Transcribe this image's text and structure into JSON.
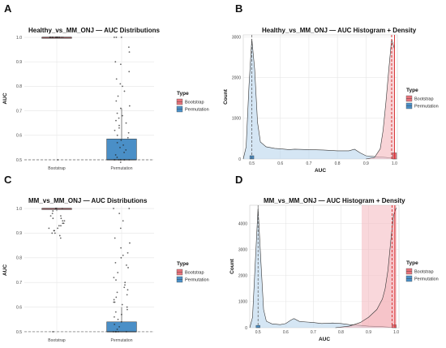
{
  "colors": {
    "bootstrap": "#e8737b",
    "permutation": "#4a8fc7",
    "bootstrap_fill": "#f4b7bd",
    "permutation_fill": "#b9d6ec",
    "grid": "#e6e6e6",
    "refline": "#666666"
  },
  "panels": [
    {
      "letter": "A",
      "title": "Healthy_vs_MM_ONJ — AUC Distributions",
      "ylabel": "AUC",
      "legend": {
        "title": "Type",
        "items": [
          "Bootstrap",
          "Permutation"
        ]
      }
    },
    {
      "letter": "B",
      "title": "Healthy_vs_MM_ONJ — AUC Histogram + Density",
      "xlabel": "AUC",
      "ylabel": "Count",
      "legend": {
        "title": "Type",
        "items": [
          "Bootstrap",
          "Permutation"
        ]
      }
    },
    {
      "letter": "C",
      "title": "MM_vs_MM_ONJ — AUC Distributions",
      "ylabel": "AUC",
      "legend": {
        "title": "Type",
        "items": [
          "Bootstrap",
          "Permutation"
        ]
      }
    },
    {
      "letter": "D",
      "title": "MM_vs_MM_ONJ — AUC Histogram + Density",
      "xlabel": "AUC",
      "ylabel": "Count",
      "legend": {
        "title": "Type",
        "items": [
          "Bootstrap",
          "Permutation"
        ]
      }
    }
  ],
  "chart_data": [
    {
      "panel": "A",
      "type": "box",
      "title": "Healthy_vs_MM_ONJ — AUC Distributions",
      "ylabel": "AUC",
      "categories": [
        "Bootstrap",
        "Permutation"
      ],
      "ylim": [
        0.5,
        1.0
      ],
      "yticks": [
        0.5,
        0.6,
        0.7,
        0.8,
        0.9,
        1.0
      ],
      "reference_line": 0.5,
      "boxes": [
        {
          "name": "Bootstrap",
          "q1": 1.0,
          "median": 1.0,
          "q3": 1.0,
          "whisker_low": 1.0,
          "whisker_high": 1.0,
          "points": [
            1.0,
            1.0,
            1.0,
            1.0,
            1.0,
            1.0,
            1.0,
            1.0,
            1.0,
            1.0,
            1.0,
            1.0,
            1.0,
            1.0,
            1.0,
            1.0,
            1.0,
            1.0,
            0.5
          ]
        },
        {
          "name": "Permutation",
          "q1": 0.5,
          "median": 0.5,
          "q3": 0.585,
          "whisker_low": 0.5,
          "whisker_high": 0.71,
          "points": [
            1.0,
            1.0,
            1.0,
            0.96,
            0.94,
            0.9,
            0.89,
            0.86,
            0.83,
            0.81,
            0.8,
            0.78,
            0.76,
            0.74,
            0.72,
            0.71,
            0.69,
            0.68,
            0.67,
            0.66,
            0.65,
            0.64,
            0.63,
            0.62,
            0.61,
            0.6,
            0.59,
            0.58,
            0.57,
            0.56,
            0.55,
            0.54,
            0.53,
            0.52,
            0.51,
            0.5,
            0.5,
            0.5,
            0.5,
            0.5,
            0.5,
            0.5,
            0.5,
            0.49
          ]
        }
      ],
      "legend": [
        "Bootstrap",
        "Permutation"
      ]
    },
    {
      "panel": "B",
      "type": "histogram_density",
      "title": "Healthy_vs_MM_ONJ — AUC Histogram + Density",
      "xlabel": "AUC",
      "ylabel": "Count",
      "xlim": [
        0.47,
        1.01
      ],
      "ylim": [
        0,
        3050
      ],
      "xticks": [
        0.5,
        0.6,
        0.7,
        0.8,
        0.9,
        1.0
      ],
      "yticks": [
        0,
        1000,
        2000,
        3000
      ],
      "vlines": {
        "permutation_mean": 0.5,
        "bootstrap_lines": [
          0.99,
          1.0
        ]
      },
      "series": [
        {
          "name": "Permutation",
          "density_x": [
            0.47,
            0.48,
            0.49,
            0.5,
            0.51,
            0.52,
            0.53,
            0.55,
            0.58,
            0.6,
            0.63,
            0.65,
            0.7,
            0.75,
            0.8,
            0.84,
            0.86,
            0.88,
            0.9,
            0.93,
            0.95,
            0.97,
            0.99,
            1.0
          ],
          "density_y": [
            0,
            300,
            1800,
            2950,
            2200,
            900,
            420,
            300,
            260,
            250,
            230,
            240,
            230,
            220,
            200,
            200,
            240,
            150,
            80,
            60,
            50,
            40,
            20,
            0
          ],
          "hist_bars": [
            {
              "x0": 0.493,
              "x1": 0.507,
              "count": 80
            }
          ]
        },
        {
          "name": "Bootstrap",
          "density_x": [
            0.9,
            0.93,
            0.95,
            0.96,
            0.97,
            0.98,
            0.99,
            1.0
          ],
          "density_y": [
            0,
            40,
            250,
            700,
            1400,
            2200,
            2950,
            2700
          ],
          "hist_bars": [
            {
              "x0": 0.993,
              "x1": 1.007,
              "count": 150
            }
          ]
        }
      ],
      "legend": [
        "Bootstrap",
        "Permutation"
      ]
    },
    {
      "panel": "C",
      "type": "box",
      "title": "MM_vs_MM_ONJ — AUC Distributions",
      "ylabel": "AUC",
      "categories": [
        "Bootstrap",
        "Permutation"
      ],
      "ylim": [
        0.5,
        1.0
      ],
      "yticks": [
        0.5,
        0.6,
        0.7,
        0.8,
        0.9,
        1.0
      ],
      "reference_line": 0.5,
      "boxes": [
        {
          "name": "Bootstrap",
          "q1": 1.0,
          "median": 1.0,
          "q3": 1.0,
          "whisker_low": 0.99,
          "whisker_high": 1.0,
          "points": [
            1.0,
            1.0,
            1.0,
            1.0,
            1.0,
            0.99,
            0.98,
            0.97,
            0.97,
            0.96,
            0.96,
            0.95,
            0.95,
            0.94,
            0.94,
            0.93,
            0.93,
            0.92,
            0.92,
            0.91,
            0.91,
            0.9,
            0.9,
            0.89,
            0.88,
            0.5
          ]
        },
        {
          "name": "Permutation",
          "q1": 0.5,
          "median": 0.5,
          "q3": 0.54,
          "whisker_low": 0.5,
          "whisker_high": 0.6,
          "points": [
            1.0,
            1.0,
            0.98,
            0.95,
            0.92,
            0.88,
            0.86,
            0.84,
            0.82,
            0.81,
            0.8,
            0.78,
            0.77,
            0.76,
            0.74,
            0.72,
            0.71,
            0.7,
            0.69,
            0.68,
            0.67,
            0.66,
            0.65,
            0.64,
            0.63,
            0.62,
            0.62,
            0.61,
            0.6,
            0.59,
            0.58,
            0.57,
            0.56,
            0.55,
            0.54,
            0.53,
            0.52,
            0.51,
            0.5,
            0.5,
            0.5,
            0.5,
            0.5
          ]
        }
      ],
      "legend": [
        "Bootstrap",
        "Permutation"
      ]
    },
    {
      "panel": "D",
      "type": "histogram_density",
      "title": "MM_vs_MM_ONJ — AUC Histogram + Density",
      "xlabel": "AUC",
      "ylabel": "Count",
      "xlim": [
        0.47,
        1.01
      ],
      "ylim": [
        0,
        4700
      ],
      "xticks": [
        0.5,
        0.6,
        0.7,
        0.8,
        0.9,
        1.0
      ],
      "yticks": [
        0,
        1000,
        2000,
        3000,
        4000
      ],
      "shaded_region": [
        0.875,
        1.0
      ],
      "vlines": {
        "permutation_mean": 0.5,
        "bootstrap_lines": [
          0.985,
          0.995
        ]
      },
      "series": [
        {
          "name": "Permutation",
          "density_x": [
            0.47,
            0.48,
            0.49,
            0.5,
            0.51,
            0.52,
            0.53,
            0.55,
            0.58,
            0.6,
            0.62,
            0.63,
            0.65,
            0.7,
            0.73,
            0.77,
            0.8,
            0.83,
            0.86,
            0.9,
            0.95,
            1.0
          ],
          "density_y": [
            0,
            400,
            2500,
            4600,
            2600,
            700,
            250,
            150,
            120,
            160,
            300,
            350,
            240,
            200,
            160,
            180,
            160,
            120,
            100,
            60,
            40,
            0
          ],
          "hist_bars": [
            {
              "x0": 0.493,
              "x1": 0.507,
              "count": 90
            }
          ]
        },
        {
          "name": "Bootstrap",
          "density_x": [
            0.78,
            0.83,
            0.87,
            0.9,
            0.93,
            0.95,
            0.96,
            0.97,
            0.98,
            0.99,
            1.0
          ],
          "density_y": [
            0,
            60,
            200,
            400,
            700,
            1100,
            1500,
            2200,
            3300,
            4300,
            4600
          ],
          "hist_bars": [
            {
              "x0": 0.985,
              "x1": 1.0,
              "count": 110
            }
          ]
        }
      ],
      "legend": [
        "Bootstrap",
        "Permutation"
      ]
    }
  ]
}
